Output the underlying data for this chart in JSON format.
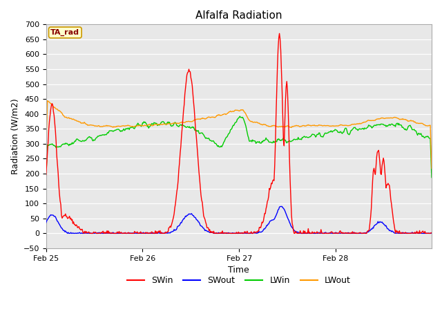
{
  "title": "Alfalfa Radiation",
  "xlabel": "Time",
  "ylabel": "Radiation (W/m2)",
  "ylim": [
    -50,
    700
  ],
  "annotation_text": "TA_rad",
  "annotation_bg": "#ffffcc",
  "annotation_border": "#cc9900",
  "annotation_text_color": "#880000",
  "fig_bg_color": "#ffffff",
  "plot_bg_color": "#e8e8e8",
  "grid_color": "#ffffff",
  "line_colors": {
    "SWin": "#ff0000",
    "SWout": "#0000ff",
    "LWin": "#00cc00",
    "LWout": "#ff9900"
  },
  "day_labels": [
    "Feb 25",
    "Feb 26",
    "Feb 27",
    "Feb 28"
  ],
  "n_points": 576
}
